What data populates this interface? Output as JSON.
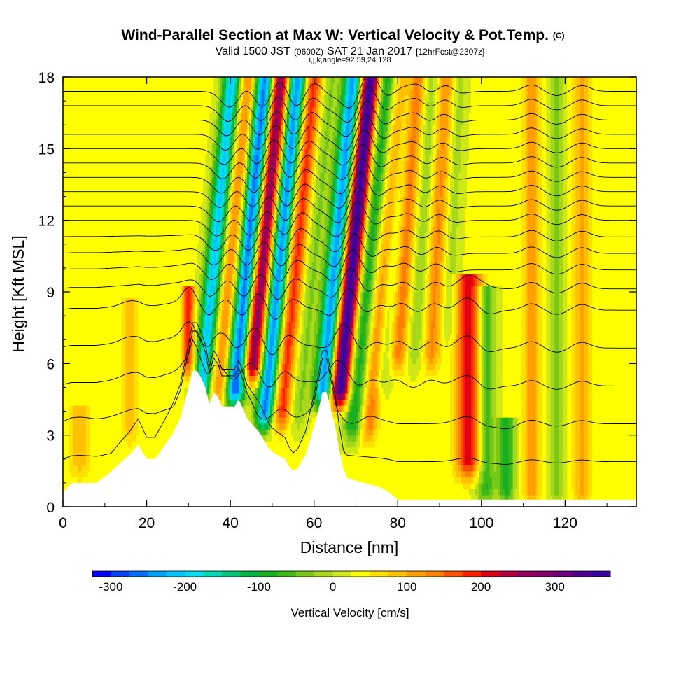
{
  "chart_data": {
    "type": "heatmap",
    "title": "Wind-Parallel Section at Max W: Vertical Velocity & Pot.Temp.",
    "title_mark": "(C)",
    "subtitle_parts": [
      "Valid 1500 JST",
      "(0600Z)",
      "SAT 21 Jan 2017",
      "[12hrFcst@2307z]"
    ],
    "subtitle_line2": "i,j,k,angle=92,59,24,128",
    "xlabel": "Distance [nm]",
    "ylabel": "Height [Kft MSL]",
    "xlim": [
      0,
      137
    ],
    "ylim": [
      0,
      18
    ],
    "x_ticks": [
      0,
      20,
      40,
      60,
      80,
      100,
      120
    ],
    "x_tick_labels": [
      "0",
      "20",
      "40",
      "60",
      "80",
      "100",
      "120"
    ],
    "y_ticks": [
      0,
      3,
      6,
      9,
      12,
      15,
      18
    ],
    "y_tick_labels": [
      "0",
      "3",
      "6",
      "9",
      "12",
      "15",
      "18"
    ],
    "colorbar": {
      "label": "Vertical Velocity [cm/s]",
      "range": [
        -325,
        375
      ],
      "bin_width": 25,
      "ticks": [
        -300,
        -200,
        -100,
        0,
        100,
        200,
        300
      ],
      "tick_labels": [
        "-300",
        "-200",
        "-100",
        "0",
        "100",
        "200",
        "300"
      ],
      "colors": [
        "#0000ff",
        "#0040ff",
        "#0070ff",
        "#00a0ff",
        "#00c8ff",
        "#00e0ee",
        "#00d8b0",
        "#00c878",
        "#00b840",
        "#18b020",
        "#40b818",
        "#78c818",
        "#a8d81a",
        "#d0e818",
        "#ffff00",
        "#ffe000",
        "#ffc000",
        "#ffa000",
        "#ff8000",
        "#ff5000",
        "#ff2000",
        "#e00010",
        "#b80040",
        "#900060",
        "#800070",
        "#6a0080",
        "#500090",
        "#3a00a0"
      ]
    },
    "terrain_profile": {
      "x": [
        0,
        2,
        5,
        8,
        11,
        14,
        16,
        18,
        20,
        22,
        24,
        26,
        28,
        30,
        31,
        32,
        33,
        34,
        35,
        36,
        37,
        38,
        39,
        40,
        41,
        42,
        43,
        44,
        45,
        46,
        47,
        48,
        49,
        50,
        51,
        52,
        53,
        54,
        55,
        56,
        57,
        58,
        59,
        60,
        61,
        62,
        63,
        64,
        65,
        66,
        67,
        68,
        70,
        72,
        74,
        76,
        78,
        80,
        84,
        137
      ],
      "height": [
        0.6,
        1.0,
        1.0,
        1.0,
        1.4,
        1.9,
        2.2,
        2.6,
        2.0,
        2.0,
        2.5,
        3.0,
        3.7,
        5.0,
        5.7,
        5.7,
        5.4,
        5.0,
        4.3,
        4.8,
        4.6,
        4.2,
        4.2,
        4.2,
        4.2,
        4.5,
        4.1,
        3.7,
        3.5,
        3.3,
        3.1,
        2.8,
        2.5,
        2.3,
        2.2,
        2.1,
        2.0,
        1.7,
        1.5,
        1.6,
        1.9,
        2.2,
        2.8,
        3.4,
        4.0,
        4.8,
        4.8,
        4.1,
        3.4,
        2.4,
        1.6,
        1.2,
        1.1,
        1.0,
        0.9,
        0.8,
        0.6,
        0.3,
        0.3,
        0.3
      ]
    },
    "vertical_velocity_features": [
      {
        "x": 33,
        "z_bottom": 4.5,
        "z_top": 18,
        "tilt": 0.55,
        "width": 2.2,
        "peak": -240
      },
      {
        "x": 37,
        "z_bottom": 4.5,
        "z_top": 18,
        "tilt": 0.55,
        "width": 2.2,
        "peak": 120
      },
      {
        "x": 41,
        "z_bottom": 4.5,
        "z_top": 18,
        "tilt": 0.55,
        "width": 2.4,
        "peak": -320
      },
      {
        "x": 45,
        "z_bottom": 5.5,
        "z_top": 18,
        "tilt": 0.55,
        "width": 2.4,
        "peak": 280
      },
      {
        "x": 48,
        "z_bottom": 3.5,
        "z_top": 18,
        "tilt": 0.55,
        "width": 2.2,
        "peak": -290
      },
      {
        "x": 52,
        "z_bottom": 3.5,
        "z_top": 18,
        "tilt": 0.55,
        "width": 2.2,
        "peak": 160
      },
      {
        "x": 56,
        "z_bottom": 3.5,
        "z_top": 18,
        "tilt": 0.55,
        "width": 2.2,
        "peak": -60
      },
      {
        "x": 62,
        "z_bottom": 4.5,
        "z_top": 18,
        "tilt": 0.55,
        "width": 2.3,
        "peak": -280
      },
      {
        "x": 66,
        "z_bottom": 4.5,
        "z_top": 18,
        "tilt": 0.55,
        "width": 2.3,
        "peak": 350
      },
      {
        "x": 69,
        "z_bottom": 3.0,
        "z_top": 18,
        "tilt": 0.55,
        "width": 2.2,
        "peak": -130
      },
      {
        "x": 73,
        "z_bottom": 3.0,
        "z_top": 18,
        "tilt": 0.55,
        "width": 2.0,
        "peak": 110
      },
      {
        "x": 76,
        "z_bottom": 5.0,
        "z_top": 18,
        "tilt": 0.45,
        "width": 2.0,
        "peak": -60
      },
      {
        "x": 80,
        "z_bottom": 6.0,
        "z_top": 18,
        "tilt": 0.4,
        "width": 2.0,
        "peak": 110
      },
      {
        "x": 84,
        "z_bottom": 6.0,
        "z_top": 18,
        "tilt": 0.35,
        "width": 2.0,
        "peak": -50
      },
      {
        "x": 88,
        "z_bottom": 6.0,
        "z_top": 18,
        "tilt": 0.3,
        "width": 2.0,
        "peak": 100
      },
      {
        "x": 92,
        "z_bottom": 7.0,
        "z_top": 18,
        "tilt": 0.25,
        "width": 2.0,
        "peak": -40
      },
      {
        "x": 97,
        "z_bottom": 1.5,
        "z_top": 9.5,
        "tilt": 0.0,
        "width": 3.0,
        "peak": 190
      },
      {
        "x": 101,
        "z_bottom": 0.3,
        "z_top": 9.0,
        "tilt": 0.0,
        "width": 2.2,
        "peak": -110
      },
      {
        "x": 106,
        "z_bottom": 0.3,
        "z_top": 3.5,
        "tilt": 0.0,
        "width": 2.0,
        "peak": -120
      },
      {
        "x": 112,
        "z_bottom": 0.3,
        "z_top": 18,
        "tilt": 0.0,
        "width": 2.0,
        "peak": 90
      },
      {
        "x": 118,
        "z_bottom": 0.3,
        "z_top": 18,
        "tilt": 0.0,
        "width": 2.0,
        "peak": -60
      },
      {
        "x": 124,
        "z_bottom": 0.3,
        "z_top": 18,
        "tilt": 0.0,
        "width": 2.0,
        "peak": 80
      },
      {
        "x": 16,
        "z_bottom": 3.0,
        "z_top": 8.5,
        "tilt": 0.0,
        "width": 2.0,
        "peak": 60
      },
      {
        "x": 30,
        "z_bottom": 5.7,
        "z_top": 9.0,
        "tilt": 0.0,
        "width": 1.5,
        "peak": 160
      },
      {
        "x": 4,
        "z_bottom": 1.5,
        "z_top": 4.0,
        "tilt": 0.0,
        "width": 2.5,
        "peak": 60
      }
    ],
    "theta_contour_base_heights": [
      1.8,
      3.4,
      5.0,
      6.6,
      8.2,
      9.1,
      9.9,
      10.6,
      11.3,
      12.0,
      12.6,
      13.2,
      13.8,
      14.4,
      15.0,
      15.6,
      16.2,
      16.8,
      17.4
    ]
  }
}
